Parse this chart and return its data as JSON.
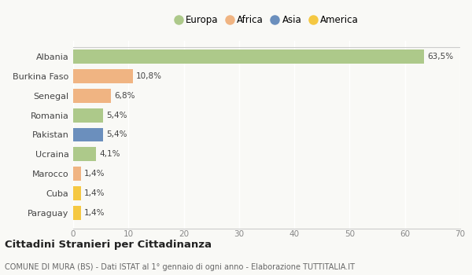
{
  "categories": [
    "Albania",
    "Burkina Faso",
    "Senegal",
    "Romania",
    "Pakistan",
    "Ucraina",
    "Marocco",
    "Cuba",
    "Paraguay"
  ],
  "values": [
    63.5,
    10.8,
    6.8,
    5.4,
    5.4,
    4.1,
    1.4,
    1.4,
    1.4
  ],
  "labels": [
    "63,5%",
    "10,8%",
    "6,8%",
    "5,4%",
    "5,4%",
    "4,1%",
    "1,4%",
    "1,4%",
    "1,4%"
  ],
  "colors": [
    "#adc98a",
    "#f0b482",
    "#f0b482",
    "#adc98a",
    "#6b8fbd",
    "#adc98a",
    "#f0b482",
    "#f5c842",
    "#f5c842"
  ],
  "legend": [
    {
      "label": "Europa",
      "color": "#adc98a"
    },
    {
      "label": "Africa",
      "color": "#f0b482"
    },
    {
      "label": "Asia",
      "color": "#6b8fbd"
    },
    {
      "label": "America",
      "color": "#f5c842"
    }
  ],
  "xlim": [
    0,
    70
  ],
  "xticks": [
    0,
    10,
    20,
    30,
    40,
    50,
    60,
    70
  ],
  "title": "Cittadini Stranieri per Cittadinanza",
  "subtitle": "COMUNE DI MURA (BS) - Dati ISTAT al 1° gennaio di ogni anno - Elaborazione TUTTITALIA.IT",
  "background_color": "#f9f9f6",
  "grid_color": "#ffffff"
}
